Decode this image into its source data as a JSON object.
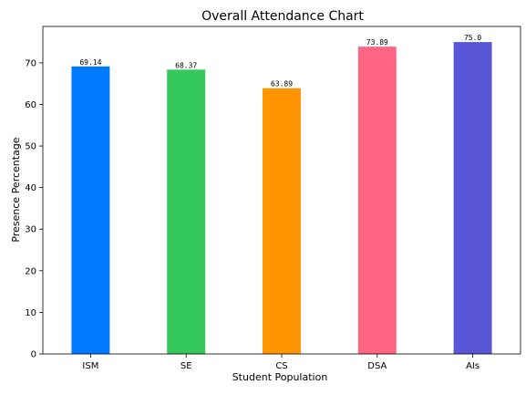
{
  "chart_data": {
    "type": "bar",
    "title": "Overall Attendance Chart",
    "xlabel": "Student Population",
    "ylabel": "Presence Percentage",
    "categories": [
      "ISM",
      "SE",
      "CS",
      "DSA",
      "AIs"
    ],
    "values": [
      69.14,
      68.37,
      63.89,
      73.89,
      75.0
    ],
    "value_labels": [
      "69.14",
      "68.37",
      "63.89",
      "73.89",
      "75.0"
    ],
    "colors": [
      "#007AFF",
      "#34C759",
      "#FF9500",
      "#FF6482",
      "#5856D6"
    ],
    "ylim": [
      0,
      78.75
    ],
    "yticks": [
      0,
      10,
      20,
      30,
      40,
      50,
      60,
      70
    ],
    "grid": false,
    "legend": "none"
  }
}
